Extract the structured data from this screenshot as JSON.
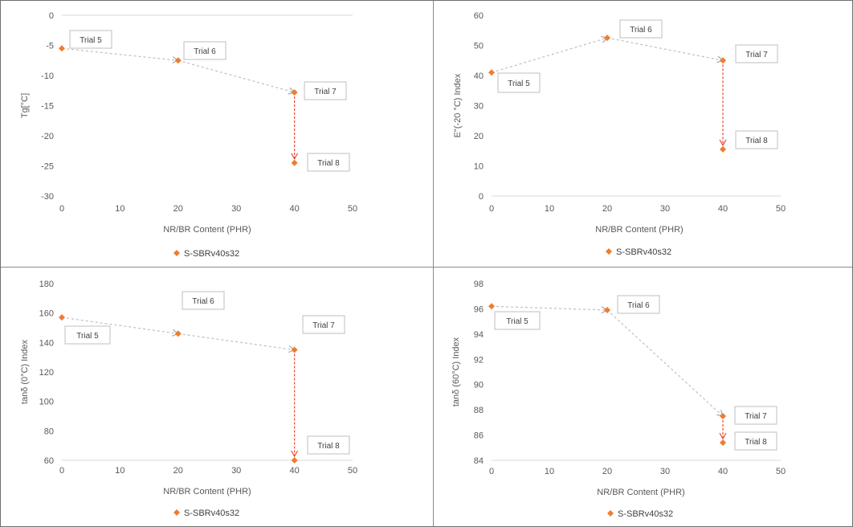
{
  "figure": {
    "colors": {
      "marker": "#ED7D31",
      "arrow_red": "#E84A3A",
      "arrow_grey": "#BFBFBF",
      "axis": "#D9D9D9",
      "text": "#595959"
    }
  },
  "chart_data": [
    {
      "type": "scatter",
      "ylabel": "Tg[°C]",
      "xlabel": "NR/BR Content (PHR)",
      "xlim": [
        0,
        50
      ],
      "ylim": [
        -30,
        0
      ],
      "xticks": [
        0,
        10,
        20,
        30,
        40,
        50
      ],
      "yticks": [
        0,
        -5,
        -10,
        -15,
        -20,
        -25,
        -30
      ],
      "legend": {
        "position": "bottom",
        "label": "S-SBRv40s32"
      },
      "points": [
        {
          "x": 0,
          "y": -5.5,
          "label": "Trial 5"
        },
        {
          "x": 20,
          "y": -7.5,
          "label": "Trial 6"
        },
        {
          "x": 40,
          "y": -12.8,
          "label": "Trial 7"
        },
        {
          "x": 40,
          "y": -24.5,
          "label": "Trial 8"
        }
      ]
    },
    {
      "type": "scatter",
      "ylabel": "E\"(-20 °C) Index",
      "xlabel": "NR/BR Content (PHR)",
      "xlim": [
        0,
        50
      ],
      "ylim": [
        0,
        60
      ],
      "xticks": [
        0,
        10,
        20,
        30,
        40,
        50
      ],
      "yticks": [
        0,
        10,
        20,
        30,
        40,
        50,
        60
      ],
      "legend": {
        "position": "bottom",
        "label": "S-SBRv40s32"
      },
      "points": [
        {
          "x": 0,
          "y": 41,
          "label": "Trial 5"
        },
        {
          "x": 20,
          "y": 52.5,
          "label": "Trial 6"
        },
        {
          "x": 40,
          "y": 45,
          "label": "Trial 7"
        },
        {
          "x": 40,
          "y": 15.5,
          "label": "Trial 8"
        }
      ]
    },
    {
      "type": "scatter",
      "ylabel": "tanδ (0°C) Index",
      "xlabel": "NR/BR Content (PHR)",
      "xlim": [
        0,
        50
      ],
      "ylim": [
        60,
        180
      ],
      "xticks": [
        0,
        10,
        20,
        30,
        40,
        50
      ],
      "yticks": [
        60,
        80,
        100,
        120,
        140,
        160,
        180
      ],
      "legend": {
        "position": "bottom",
        "label": "S-SBRv40s32"
      },
      "points": [
        {
          "x": 0,
          "y": 157,
          "label": "Trial 5"
        },
        {
          "x": 20,
          "y": 146,
          "label": "Trial 6"
        },
        {
          "x": 40,
          "y": 135,
          "label": "Trial 7"
        },
        {
          "x": 40,
          "y": 60,
          "label": "Trial 8"
        }
      ]
    },
    {
      "type": "scatter",
      "ylabel": "tanδ (60°C) Index",
      "xlabel": "NR/BR Content (PHR)",
      "xlim": [
        0,
        50
      ],
      "ylim": [
        84,
        98
      ],
      "xticks": [
        0,
        10,
        20,
        30,
        40,
        50
      ],
      "yticks": [
        84,
        86,
        88,
        90,
        92,
        94,
        96,
        98
      ],
      "legend": {
        "position": "bottom",
        "label": "S-SBRv40s32"
      },
      "points": [
        {
          "x": 0,
          "y": 96.2,
          "label": "Trial 5"
        },
        {
          "x": 20,
          "y": 95.9,
          "label": "Trial 6"
        },
        {
          "x": 40,
          "y": 87.5,
          "label": "Trial 7"
        },
        {
          "x": 40,
          "y": 85.4,
          "label": "Trial 8"
        }
      ]
    }
  ]
}
